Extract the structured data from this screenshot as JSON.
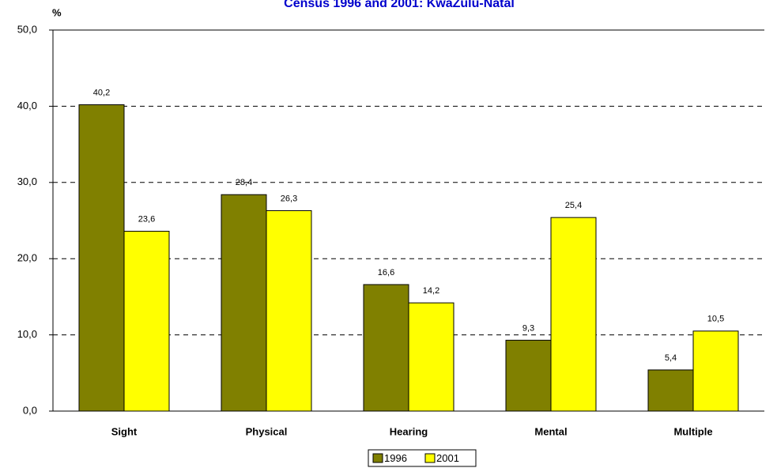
{
  "chart_data": {
    "type": "bar",
    "title": "Census 1996 and 2001: KwaZulu-Natal",
    "y_label": "%",
    "categories": [
      "Sight",
      "Physical",
      "Hearing",
      "Mental",
      "Multiple"
    ],
    "series": [
      {
        "name": "1996",
        "color": "#808000",
        "values": [
          40.2,
          28.4,
          16.6,
          9.3,
          5.4
        ],
        "value_labels": [
          "40,2",
          "28,4",
          "16,6",
          "9,3",
          "5,4"
        ]
      },
      {
        "name": "2001",
        "color": "#ffff00",
        "values": [
          23.6,
          26.3,
          14.2,
          25.4,
          10.5
        ],
        "value_labels": [
          "23,6",
          "26,3",
          "14,2",
          "25,4",
          "10,5"
        ]
      }
    ],
    "ylim": [
      0,
      50
    ],
    "yticks": [
      {
        "value": 0,
        "label": "0,0"
      },
      {
        "value": 10,
        "label": "10,0"
      },
      {
        "value": 20,
        "label": "20,0"
      },
      {
        "value": 30,
        "label": "30,0"
      },
      {
        "value": 40,
        "label": "40,0"
      },
      {
        "value": 50,
        "label": "50,0"
      }
    ],
    "grid": true,
    "legend": "bottom"
  }
}
